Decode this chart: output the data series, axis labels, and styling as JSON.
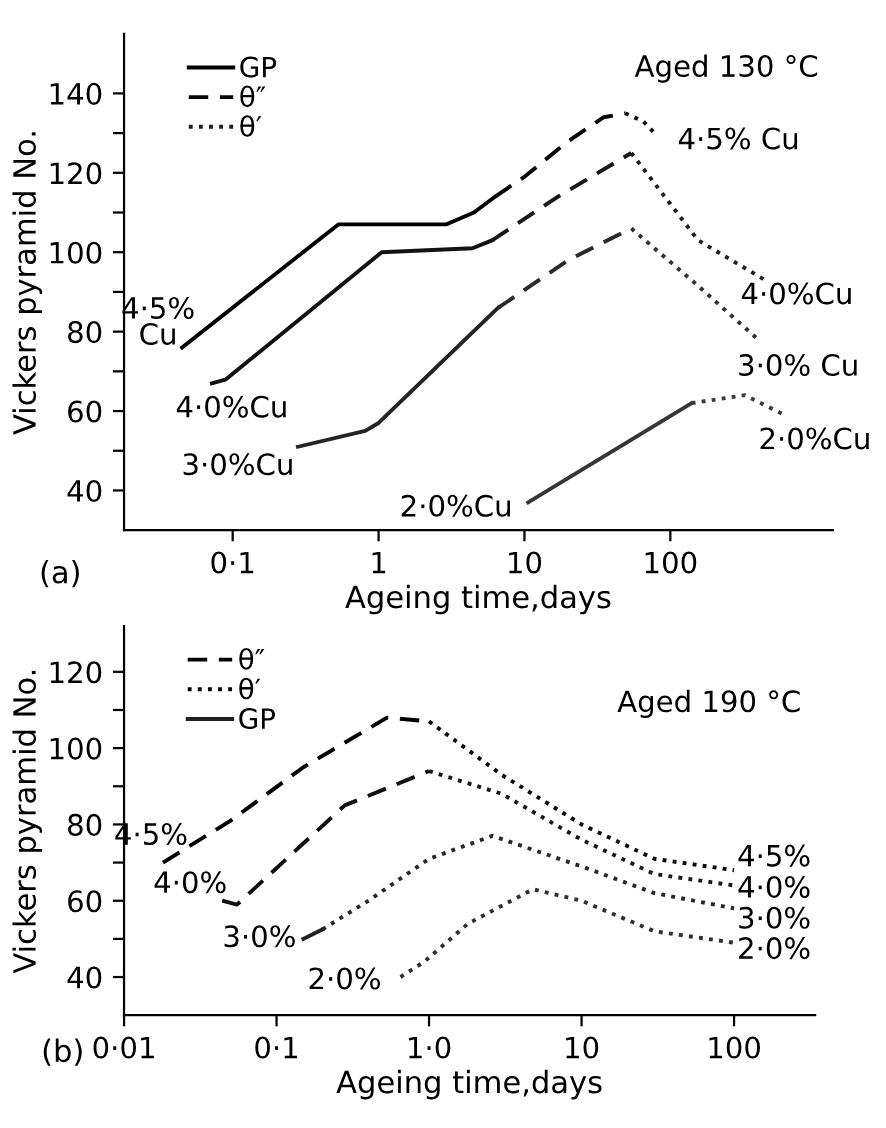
{
  "chart_data": [
    {
      "type": "line",
      "title": "(a)",
      "xlabel": "Ageing time,days",
      "ylabel": "Vickers pyramid No.",
      "log": "x",
      "legend": "top left",
      "xlim": [
        0.018,
        1300
      ],
      "ylim": [
        30,
        155
      ],
      "xticks": [
        {
          "value": 0.1,
          "label": "0·1"
        },
        1,
        10,
        100
      ],
      "yticks": [
        40,
        {
          "value": 50,
          "label": null
        },
        60,
        {
          "value": 70,
          "label": null
        },
        80,
        {
          "value": 90,
          "label": null
        },
        100,
        {
          "value": 110,
          "label": null
        },
        120,
        {
          "value": 130,
          "label": null
        },
        140
      ],
      "series": [
        {
          "name": "GP",
          "color": "#000000",
          "line_style": "solid",
          "x": [
            0.045,
            0.53,
            2.9,
            4.5,
            6.3
          ],
          "values": [
            76,
            107,
            107,
            110,
            114
          ]
        },
        {
          "name": "θ″",
          "color": "#060606",
          "line_style": "dashed",
          "x": [
            6.3,
            10,
            20,
            35,
            49
          ],
          "values": [
            114,
            119,
            128,
            134,
            135
          ]
        },
        {
          "color": "#0c0c0c",
          "line_style": "dotted",
          "x": [
            49,
            65,
            78
          ],
          "values": [
            135,
            133,
            130
          ]
        },
        {
          "color": "#121212",
          "line_style": "solid",
          "x": [
            0.072,
            0.09,
            1.05,
            4.4,
            6
          ],
          "values": [
            67,
            68,
            100,
            101,
            103
          ]
        },
        {
          "color": "#181818",
          "line_style": "dashed",
          "x": [
            6,
            17,
            54
          ],
          "values": [
            103,
            114,
            125
          ]
        },
        {
          "name": "θ′",
          "color": "#1e1e1e",
          "line_style": "dotted",
          "x": [
            54,
            155,
            445
          ],
          "values": [
            125,
            103,
            93
          ]
        },
        {
          "color": "#242424",
          "line_style": "solid",
          "x": [
            0.28,
            0.81,
            1,
            6.6
          ],
          "values": [
            51,
            55,
            57,
            86
          ]
        },
        {
          "color": "#2a2a2a",
          "line_style": "dashed",
          "x": [
            6.6,
            20,
            54
          ],
          "values": [
            86,
            98,
            106
          ]
        },
        {
          "color": "#303030",
          "line_style": "dotted",
          "x": [
            54,
            150,
            400
          ],
          "values": [
            106,
            92,
            78
          ]
        },
        {
          "color": "#363636",
          "line_style": "solid",
          "x": [
            10.6,
            140
          ],
          "values": [
            37,
            62
          ]
        },
        {
          "color": "#3c3c3c",
          "line_style": "dotted",
          "x": [
            140,
            325,
            610
          ],
          "values": [
            62,
            64,
            59
          ]
        }
      ],
      "annotations": [
        {
          "text": "4·5%\nCu",
          "x": 0.045,
          "y": 76
        },
        {
          "text": "4·0%Cu",
          "x": 0.072,
          "y": 67
        },
        {
          "text": "3·0%Cu",
          "x": 0.28,
          "y": 51
        },
        {
          "text": "2·0%Cu",
          "x": 10.6,
          "y": 37
        },
        {
          "text": "4·5% Cu",
          "x": 78,
          "y": 130
        },
        {
          "text": "4·0%Cu",
          "x": 445,
          "y": 93
        },
        {
          "text": "3·0% Cu",
          "x": 400,
          "y": 78
        },
        {
          "text": "2·0%Cu",
          "x": 610,
          "y": 59
        },
        "Aged 130 °C"
      ]
    },
    {
      "type": "line",
      "title": "(b)",
      "xlabel": "Ageing time,days",
      "ylabel": "Vickers pyramid No.",
      "log": "x",
      "legend": "top left",
      "xlim": [
        0.01,
        340
      ],
      "ylim": [
        30,
        132
      ],
      "xticks": [
        {
          "value": 0.01,
          "label": "0·01"
        },
        {
          "value": 0.1,
          "label": "0·1"
        },
        {
          "value": 1,
          "label": "1·0"
        },
        10,
        100
      ],
      "yticks": [
        40,
        {
          "value": 50,
          "label": null
        },
        60,
        {
          "value": 70,
          "label": null
        },
        80,
        {
          "value": 90,
          "label": null
        },
        100,
        {
          "value": 110,
          "label": null
        },
        120
      ],
      "series": [
        {
          "name": "θ″",
          "color": "#000000",
          "line_style": "dashed",
          "x": [
            0.018,
            0.05,
            0.15,
            0.53,
            1
          ],
          "values": [
            70,
            81,
            95,
            108,
            107
          ]
        },
        {
          "name": "θ′",
          "color": "#080808",
          "line_style": "dotted",
          "x": [
            1,
            3,
            10,
            30,
            100
          ],
          "values": [
            107,
            93,
            80,
            71,
            68
          ]
        },
        {
          "color": "#101010",
          "line_style": "dashed",
          "x": [
            0.044,
            0.055,
            0.28,
            1
          ],
          "values": [
            60,
            59,
            85,
            94
          ]
        },
        {
          "color": "#181818",
          "line_style": "dotted",
          "x": [
            1,
            3,
            10,
            30,
            100
          ],
          "values": [
            94,
            88,
            76,
            67,
            64
          ]
        },
        {
          "name": "GP",
          "color": "#202020",
          "line_style": "solid",
          "x": [
            0.15,
            0.2
          ],
          "values": [
            50,
            52.5
          ]
        },
        {
          "color": "#282828",
          "line_style": "dotted",
          "x": [
            0.2,
            0.4,
            1,
            2.6,
            10,
            30,
            100
          ],
          "values": [
            52.5,
            60,
            71,
            77,
            69,
            62,
            58
          ]
        },
        {
          "color": "#303030",
          "line_style": "dotted",
          "x": [
            0.65,
            0.93,
            1.8,
            4.8,
            10,
            30,
            100
          ],
          "values": [
            40,
            44,
            54,
            63,
            60,
            52,
            49
          ]
        }
      ],
      "annotations": [
        {
          "text": "4·5%",
          "x": 0.018,
          "y": 70
        },
        {
          "text": "4·0%",
          "x": 0.044,
          "y": 60
        },
        {
          "text": "3·0%",
          "x": 0.15,
          "y": 50
        },
        {
          "text": "2·0%",
          "x": 0.65,
          "y": 40
        },
        {
          "text": "4·5%",
          "x": 100,
          "y": 68
        },
        {
          "text": "4·0%",
          "x": 100,
          "y": 64
        },
        {
          "text": "3·0%",
          "x": 100,
          "y": 58
        },
        {
          "text": "2·0%",
          "x": 100,
          "y": 49
        },
        "Aged 190 °C"
      ]
    }
  ]
}
